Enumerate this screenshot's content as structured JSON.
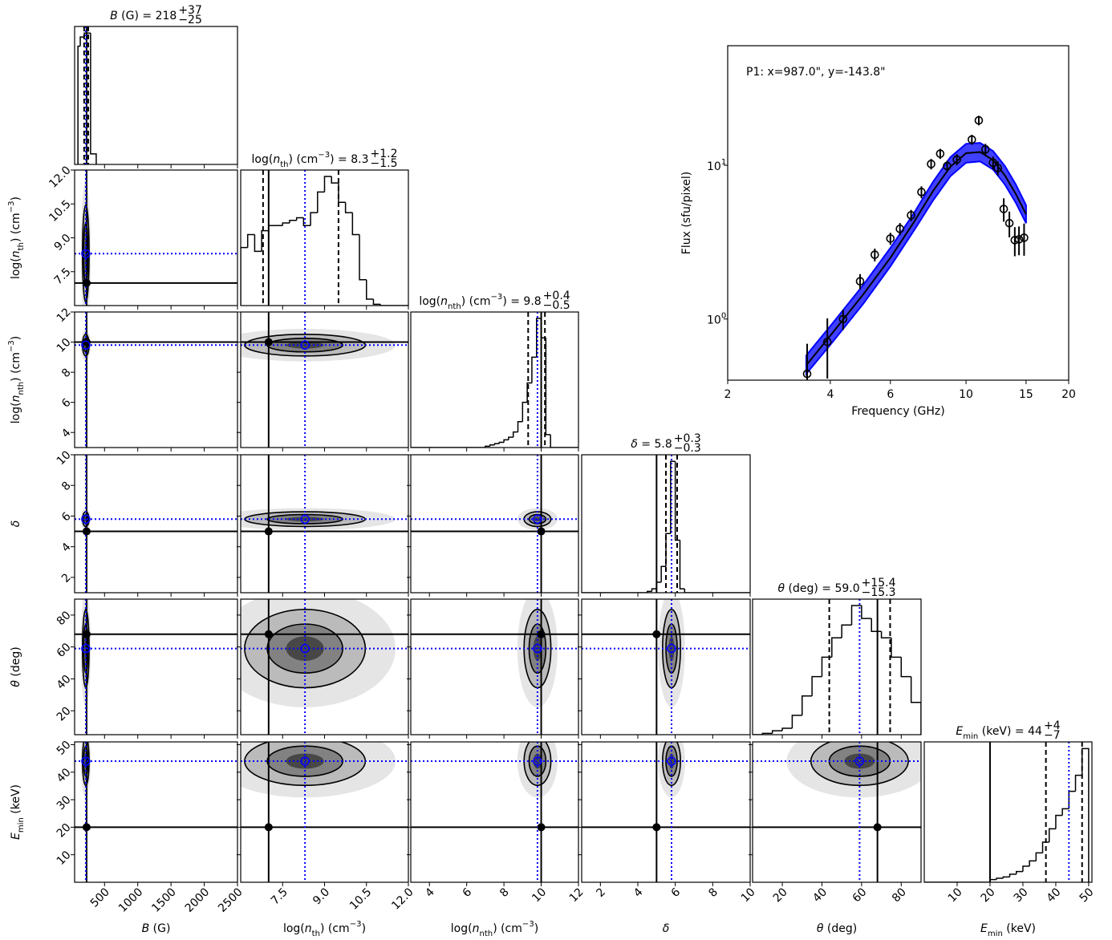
{
  "chart_data": [
    {
      "type": "corner",
      "truth_color": "#000000",
      "median_color": "#0000ff",
      "density_color": "#000000",
      "hist_color": "#000000",
      "parameters": [
        {
          "label": [
            {
              "text": "B",
              "style": "italic"
            },
            {
              "text": " (G)"
            }
          ],
          "title": [
            {
              "text": "B",
              "style": "italic"
            },
            {
              "text": " (G) = "
            }
          ],
          "median": 218,
          "upper": {
            "value": 37,
            "label": "+37"
          },
          "lower": {
            "value": -25,
            "label": "−25"
          },
          "truth": 230,
          "lim": [
            50,
            2500
          ],
          "ticks": [
            500,
            1000,
            1500,
            2000,
            2500
          ],
          "bins": [
            100,
            135,
            195,
            290,
            375
          ],
          "counts": [
            90,
            97,
            100,
            8
          ],
          "count_lim": [
            0,
            105
          ]
        },
        {
          "label": [
            {
              "text": "log("
            },
            {
              "text": "n",
              "style": "italic"
            },
            {
              "text": "th",
              "style": "sub"
            },
            {
              "text": ") (cm"
            },
            {
              "text": "−3",
              "style": "sup"
            },
            {
              "text": ")"
            }
          ],
          "title": [
            {
              "text": "log("
            },
            {
              "text": "n",
              "style": "italic"
            },
            {
              "text": "th",
              "style": "sub"
            },
            {
              "text": ") (cm"
            },
            {
              "text": "−3",
              "style": "sup"
            },
            {
              "text": ") = "
            }
          ],
          "median": 8.3,
          "upper": {
            "value": 1.2,
            "label": "+1.2"
          },
          "lower": {
            "value": -1.5,
            "label": "−1.5"
          },
          "truth": 7.0,
          "lim": [
            6,
            12
          ],
          "ticks": [
            7.5,
            {
              "value": 9,
              "label": "9.0"
            },
            10.5,
            {
              "value": 12,
              "label": "12.0"
            }
          ],
          "bins": [
            6,
            6.25,
            6.5,
            6.75,
            7,
            7.25,
            7.5,
            7.75,
            8,
            8.25,
            8.5,
            8.75,
            9,
            9.25,
            9.5,
            9.75,
            10,
            10.25,
            10.5,
            10.75,
            11,
            11.25,
            11.5,
            11.75,
            12
          ],
          "counts": [
            45,
            55,
            42,
            58,
            62,
            62,
            64,
            66,
            68,
            62,
            72,
            88,
            100,
            95,
            80,
            72,
            55,
            20,
            5,
            1,
            0,
            0,
            0,
            0
          ],
          "count_lim": [
            0,
            105
          ]
        },
        {
          "label": [
            {
              "text": "log("
            },
            {
              "text": "n",
              "style": "italic"
            },
            {
              "text": "nth",
              "style": "sub"
            },
            {
              "text": ") (cm"
            },
            {
              "text": "−3",
              "style": "sup"
            },
            {
              "text": ")"
            }
          ],
          "title": [
            {
              "text": "log("
            },
            {
              "text": "n",
              "style": "italic"
            },
            {
              "text": "nth",
              "style": "sub"
            },
            {
              "text": ") (cm"
            },
            {
              "text": "−3",
              "style": "sup"
            },
            {
              "text": ") = "
            }
          ],
          "median": 9.8,
          "upper": {
            "value": 0.4,
            "label": "+0.4"
          },
          "lower": {
            "value": -0.5,
            "label": "−0.5"
          },
          "truth": 10.0,
          "lim": [
            3,
            12
          ],
          "ticks": [
            4,
            6,
            8,
            10,
            12
          ],
          "bins": [
            3,
            3.25,
            3.5,
            3.75,
            4,
            4.25,
            4.5,
            4.75,
            5,
            5.25,
            5.5,
            5.75,
            6,
            6.25,
            6.5,
            6.75,
            7,
            7.25,
            7.5,
            7.75,
            8,
            8.25,
            8.5,
            8.75,
            9,
            9.25,
            9.5,
            9.75,
            10,
            10.25,
            10.5,
            10.75,
            11,
            11.25,
            11.5,
            11.75,
            12
          ],
          "counts": [
            0,
            0,
            0,
            0,
            0,
            0,
            0,
            0,
            0,
            0,
            0,
            0,
            0,
            0,
            0,
            0,
            1,
            2,
            3,
            4,
            6,
            8,
            12,
            20,
            35,
            50,
            70,
            100,
            85,
            10,
            0,
            0,
            0,
            0,
            0,
            0
          ],
          "count_lim": [
            0,
            105
          ]
        },
        {
          "label": [
            {
              "text": "δ",
              "style": "italic"
            }
          ],
          "title": [
            {
              "text": "δ",
              "style": "italic"
            },
            {
              "text": " = "
            }
          ],
          "median": 5.8,
          "upper": {
            "value": 0.3,
            "label": "+0.3"
          },
          "lower": {
            "value": -0.3,
            "label": "−0.3"
          },
          "truth": 5.0,
          "lim": [
            1,
            10
          ],
          "ticks": [
            2,
            4,
            6,
            8,
            10
          ],
          "bins": [
            1,
            1.25,
            1.5,
            1.75,
            2,
            2.25,
            2.5,
            2.75,
            3,
            3.25,
            3.5,
            3.75,
            4,
            4.25,
            4.5,
            4.75,
            5,
            5.25,
            5.5,
            5.75,
            6,
            6.25,
            6.5,
            6.75,
            7,
            7.25,
            7.5,
            7.75,
            8,
            8.25,
            8.5,
            8.75,
            9,
            9.25,
            9.5,
            9.75,
            10
          ],
          "counts": [
            0,
            0,
            0,
            0,
            0,
            0,
            0,
            0,
            0,
            0,
            0,
            0,
            0,
            0,
            1,
            3,
            8,
            20,
            45,
            100,
            40,
            3,
            0,
            0,
            0,
            0,
            0,
            0,
            0,
            0,
            0,
            0,
            0,
            0,
            0,
            0
          ],
          "count_lim": [
            0,
            105
          ]
        },
        {
          "label": [
            {
              "text": "θ",
              "style": "italic"
            },
            {
              "text": " (deg)"
            }
          ],
          "title": [
            {
              "text": "θ",
              "style": "italic"
            },
            {
              "text": " (deg) = "
            }
          ],
          "median": {
            "value": 59,
            "label": "59.0"
          },
          "upper": {
            "value": 15.4,
            "label": "+15.4"
          },
          "lower": {
            "value": -15.3,
            "label": "−15.3"
          },
          "truth": 68,
          "lim": [
            5,
            90
          ],
          "ticks": [
            20,
            40,
            60,
            80
          ],
          "bins": [
            5,
            10,
            15,
            20,
            25,
            30,
            35,
            40,
            45,
            50,
            55,
            60,
            65,
            70,
            75,
            80,
            85,
            90
          ],
          "counts": [
            0,
            1,
            3,
            5,
            15,
            30,
            45,
            60,
            75,
            85,
            100,
            90,
            80,
            75,
            60,
            45,
            25
          ],
          "count_lim": [
            0,
            105
          ]
        },
        {
          "label": [
            {
              "text": "E",
              "style": "italic"
            },
            {
              "text": "min",
              "style": "sub"
            },
            {
              "text": " (keV)"
            }
          ],
          "title": [
            {
              "text": "E",
              "style": "italic"
            },
            {
              "text": "min",
              "style": "sub"
            },
            {
              "text": " (keV) = "
            }
          ],
          "median": 44,
          "upper": {
            "value": 4,
            "label": "+4"
          },
          "lower": {
            "value": -7,
            "label": "−7"
          },
          "truth": 20,
          "lim": [
            0,
            51
          ],
          "ticks": [
            10,
            20,
            30,
            40,
            50
          ],
          "bins": [
            0,
            2,
            4,
            6,
            8,
            10,
            12,
            14,
            16,
            18,
            20,
            22,
            24,
            26,
            28,
            30,
            32,
            34,
            36,
            38,
            40,
            42,
            44,
            46,
            48,
            50
          ],
          "counts": [
            0,
            0,
            0,
            0,
            0,
            0,
            0,
            0,
            0,
            0,
            2,
            3,
            4,
            6,
            8,
            12,
            16,
            22,
            30,
            40,
            50,
            55,
            68,
            80,
            100
          ],
          "count_lim": [
            0,
            105
          ]
        }
      ]
    },
    {
      "type": "errorbar",
      "annotation": "P1: x=987.0\", y=-143.8\"",
      "xlabel": "Frequency (GHz)",
      "ylabel": "Flux (sfu/pixel)",
      "xscale": "log",
      "yscale": "log",
      "xlim": [
        2,
        20
      ],
      "ylim": [
        0.4,
        60
      ],
      "xticks": [
        2,
        4,
        6,
        10,
        15,
        20
      ],
      "yticks": [
        {
          "value": 1,
          "label": [
            {
              "text": "10"
            },
            {
              "text": "0",
              "style": "sup"
            }
          ]
        },
        {
          "value": 10,
          "label": [
            {
              "text": "10"
            },
            {
              "text": "1",
              "style": "sup"
            }
          ]
        }
      ],
      "color": "#000000",
      "x": [
        3.42,
        3.92,
        4.36,
        4.89,
        5.4,
        6.0,
        6.4,
        6.9,
        7.4,
        7.9,
        8.4,
        8.8,
        9.4,
        10.4,
        10.9,
        11.4,
        12.0,
        12.4,
        12.9,
        13.4,
        13.9,
        14.3,
        14.8
      ],
      "values": [
        0.44,
        0.71,
        1.0,
        1.76,
        2.62,
        3.34,
        3.86,
        4.73,
        6.7,
        10.2,
        11.9,
        9.9,
        10.9,
        14.7,
        19.6,
        12.7,
        10.4,
        9.6,
        5.2,
        4.2,
        3.26,
        3.3,
        3.38
      ],
      "errors": [
        0.25,
        0.3,
        0.15,
        0.2,
        0.25,
        0.3,
        0.35,
        0.4,
        0.6,
        0.8,
        0.9,
        0.8,
        0.9,
        1.1,
        1.4,
        1.1,
        1.0,
        1.0,
        0.9,
        0.8,
        0.7,
        0.7,
        0.8
      ],
      "fit": {
        "color": "#000000",
        "band_color": "#0000ff",
        "x": [
          3.4,
          4,
          5,
          6,
          7,
          8,
          9,
          10,
          11,
          12,
          13,
          14,
          15
        ],
        "values": [
          0.5,
          0.78,
          1.45,
          2.5,
          4.2,
          6.8,
          9.8,
          12.0,
          12.2,
          10.8,
          8.6,
          6.5,
          4.8
        ],
        "lower": [
          0.44,
          0.68,
          1.26,
          2.2,
          3.7,
          5.9,
          8.5,
          10.4,
          10.6,
          9.4,
          7.5,
          5.7,
          4.2
        ],
        "upper": [
          0.58,
          0.9,
          1.67,
          2.9,
          4.8,
          7.8,
          11.3,
          13.8,
          14.0,
          12.4,
          9.9,
          7.5,
          5.5
        ]
      }
    }
  ]
}
